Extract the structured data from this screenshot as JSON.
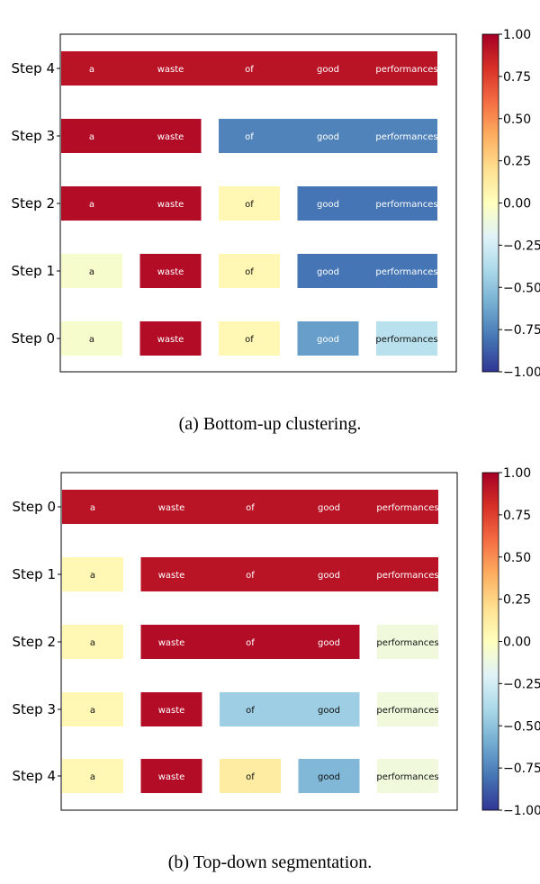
{
  "chart_data": [
    {
      "type": "heatmap",
      "caption": "(a) Bottom-up clustering.",
      "words": [
        "a",
        "waste",
        "of",
        "good",
        "performances"
      ],
      "rows": [
        {
          "label": "Step 4",
          "groups": [
            {
              "span": [
                0,
                4
              ],
              "value": 0.92
            }
          ]
        },
        {
          "label": "Step 3",
          "groups": [
            {
              "span": [
                0,
                1
              ],
              "value": 0.95
            },
            {
              "span": [
                2,
                4
              ],
              "value": -0.75
            }
          ]
        },
        {
          "label": "Step 2",
          "groups": [
            {
              "span": [
                0,
                1
              ],
              "value": 0.95
            },
            {
              "span": [
                2,
                2
              ],
              "value": 0.05
            },
            {
              "span": [
                3,
                4
              ],
              "value": -0.8
            }
          ]
        },
        {
          "label": "Step 1",
          "groups": [
            {
              "span": [
                0,
                0
              ],
              "value": -0.05
            },
            {
              "span": [
                1,
                1
              ],
              "value": 0.95
            },
            {
              "span": [
                2,
                2
              ],
              "value": 0.05
            },
            {
              "span": [
                3,
                4
              ],
              "value": -0.8
            }
          ]
        },
        {
          "label": "Step 0",
          "groups": [
            {
              "span": [
                0,
                0
              ],
              "value": -0.05
            },
            {
              "span": [
                1,
                1
              ],
              "value": 0.95
            },
            {
              "span": [
                2,
                2
              ],
              "value": 0.05
            },
            {
              "span": [
                3,
                3
              ],
              "value": -0.65
            },
            {
              "span": [
                4,
                4
              ],
              "value": -0.35
            }
          ]
        }
      ],
      "colorbar": {
        "range": [
          -1.0,
          1.0
        ],
        "ticks": [
          "1.00",
          "0.75",
          "0.50",
          "0.25",
          "0.00",
          "−0.25",
          "−0.50",
          "−0.75",
          "−1.00"
        ],
        "colormap": "RdYlBu_r"
      }
    },
    {
      "type": "heatmap",
      "caption": "(b) Top-down segmentation.",
      "words": [
        "a",
        "waste",
        "of",
        "good",
        "performances"
      ],
      "rows": [
        {
          "label": "Step 0",
          "groups": [
            {
              "span": [
                0,
                4
              ],
              "value": 0.92
            }
          ]
        },
        {
          "label": "Step 1",
          "groups": [
            {
              "span": [
                0,
                0
              ],
              "value": 0.05
            },
            {
              "span": [
                1,
                4
              ],
              "value": 0.92
            }
          ]
        },
        {
          "label": "Step 2",
          "groups": [
            {
              "span": [
                0,
                0
              ],
              "value": 0.05
            },
            {
              "span": [
                1,
                3
              ],
              "value": 0.95
            },
            {
              "span": [
                4,
                4
              ],
              "value": -0.1
            }
          ]
        },
        {
          "label": "Step 3",
          "groups": [
            {
              "span": [
                0,
                0
              ],
              "value": 0.05
            },
            {
              "span": [
                1,
                1
              ],
              "value": 0.95
            },
            {
              "span": [
                2,
                3
              ],
              "value": -0.45
            },
            {
              "span": [
                4,
                4
              ],
              "value": -0.1
            }
          ]
        },
        {
          "label": "Step 4",
          "groups": [
            {
              "span": [
                0,
                0
              ],
              "value": 0.05
            },
            {
              "span": [
                1,
                1
              ],
              "value": 0.95
            },
            {
              "span": [
                2,
                2
              ],
              "value": 0.12
            },
            {
              "span": [
                3,
                3
              ],
              "value": -0.55
            },
            {
              "span": [
                4,
                4
              ],
              "value": -0.1
            }
          ]
        }
      ],
      "colorbar": {
        "range": [
          -1.0,
          1.0
        ],
        "ticks": [
          "1.00",
          "0.75",
          "0.50",
          "0.25",
          "0.00",
          "−0.25",
          "−0.50",
          "−0.75",
          "−1.00"
        ],
        "colormap": "RdYlBu_r"
      }
    }
  ]
}
